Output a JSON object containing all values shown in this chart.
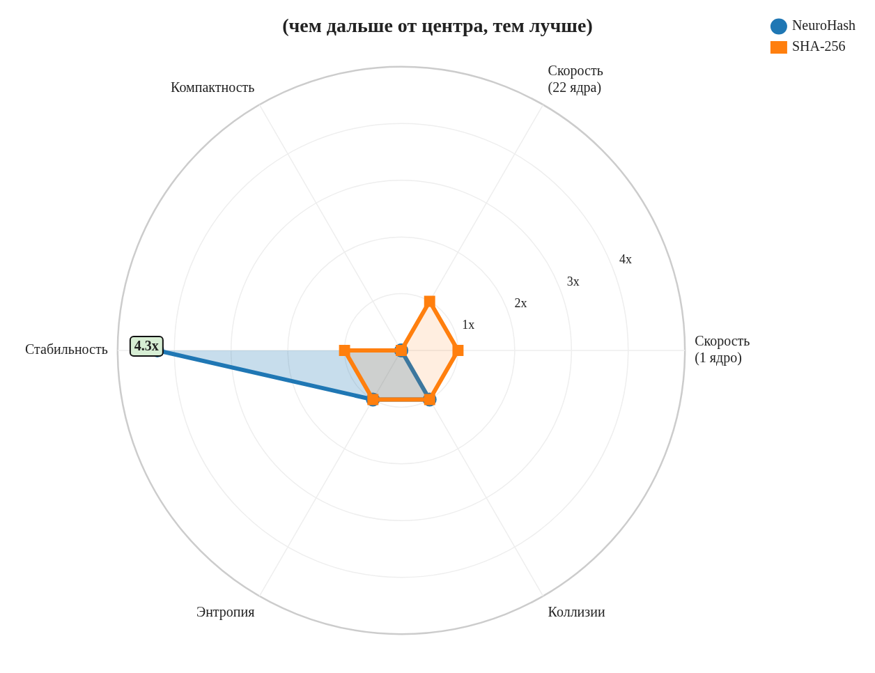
{
  "chart_data": {
    "type": "radar",
    "title": "(чем дальше от центра, тем лучше)",
    "categories": [
      "Скорость\n(22 ядра)",
      "Скорость\n(1 ядро)",
      "Коллизии",
      "Энтропия",
      "Стабильность",
      "Компактность"
    ],
    "series": [
      {
        "name": "NeuroHash",
        "color": "#1f77b4",
        "marker": "circle",
        "values": [
          0,
          0,
          1,
          1,
          4.3,
          null
        ],
        "value_labels": [
          null,
          null,
          null,
          null,
          "4.3x",
          null
        ]
      },
      {
        "name": "SHA-256",
        "color": "#ff7f0e",
        "marker": "square",
        "values": [
          1,
          1,
          1,
          1,
          1,
          0
        ]
      }
    ],
    "ylim": [
      0,
      5
    ],
    "yticks": [
      {
        "value": 1,
        "label": "1x"
      },
      {
        "value": 2,
        "label": "2x"
      },
      {
        "value": 3,
        "label": "3x"
      },
      {
        "value": 4,
        "label": "4x"
      }
    ],
    "grid": true,
    "legend": "top right"
  }
}
